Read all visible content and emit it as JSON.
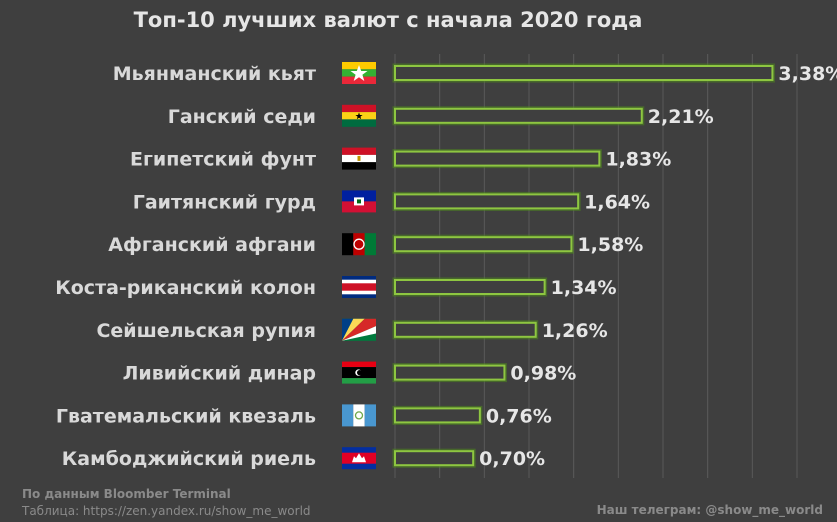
{
  "title": "Топ-10 лучших валют с начала 2020 года",
  "source": {
    "line1": "По данным Bloomber Terminal",
    "line2": "Таблица: https://zen.yandex.ru/show_me_world"
  },
  "telegram": "Наш телеграм:  @show_me_world",
  "colors": {
    "background": "#3f3f3f",
    "bar_outline": "#8ec641",
    "text": "#d9d9d9"
  },
  "chart_data": {
    "type": "bar",
    "orientation": "horizontal",
    "title": "Топ-10 лучших валют с начала 2020 года",
    "unit": "%",
    "xlim": [
      0,
      3.6
    ],
    "grid": true,
    "categories": [
      "Мьянманский кьят",
      "Ганский седи",
      "Египетский фунт",
      "Гаитянский гурд",
      "Афганский афгани",
      "Коста-риканский колон",
      "Сейшельская рупия",
      "Ливийский динар",
      "Гватемальский квезаль",
      "Камбоджийский риель"
    ],
    "values": [
      3.38,
      2.21,
      1.83,
      1.64,
      1.58,
      1.34,
      1.26,
      0.98,
      0.76,
      0.7
    ],
    "value_labels": [
      "3,38%",
      "2,21%",
      "1,83%",
      "1,64%",
      "1,58%",
      "1,34%",
      "1,26%",
      "0,98%",
      "0,76%",
      "0,70%"
    ],
    "flags": [
      "myanmar-flag",
      "ghana-flag",
      "egypt-flag",
      "haiti-flag",
      "afghanistan-flag",
      "costa-rica-flag",
      "seychelles-flag",
      "libya-flag",
      "guatemala-flag",
      "cambodia-flag"
    ]
  }
}
